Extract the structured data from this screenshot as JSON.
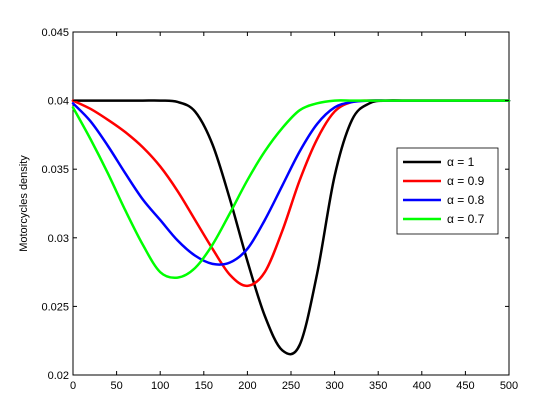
{
  "chart_data": {
    "type": "line",
    "title": "",
    "xlabel": "",
    "ylabel": "Motorcycles density",
    "xlim": [
      0,
      500
    ],
    "ylim": [
      0.02,
      0.045
    ],
    "xticks": [
      0,
      50,
      100,
      150,
      200,
      250,
      300,
      350,
      400,
      450,
      500
    ],
    "xtick_labels": [
      "0",
      "50",
      "100",
      "150",
      "200",
      "250",
      "300",
      "350",
      "400",
      "450",
      "500"
    ],
    "yticks": [
      0.02,
      0.025,
      0.03,
      0.035,
      0.04,
      0.045
    ],
    "ytick_labels": [
      "0.02",
      "0.025",
      "0.03",
      "0.035",
      "0.04",
      "0.045"
    ],
    "grid": false,
    "legend_position": "right",
    "x": [
      0,
      20,
      40,
      60,
      80,
      100,
      120,
      140,
      160,
      180,
      200,
      220,
      240,
      260,
      280,
      300,
      320,
      340,
      360,
      380,
      400,
      450,
      500
    ],
    "series": [
      {
        "name": "α = 1",
        "color": "#000000",
        "values": [
          0.04,
          0.04,
          0.04,
          0.04,
          0.04,
          0.04,
          0.0399,
          0.0392,
          0.0368,
          0.0328,
          0.0283,
          0.0243,
          0.0218,
          0.0222,
          0.0274,
          0.0345,
          0.0386,
          0.0398,
          0.04,
          0.04,
          0.04,
          0.04,
          0.04
        ]
      },
      {
        "name": "α = 0.9",
        "color": "#ff0000",
        "values": [
          0.04,
          0.0394,
          0.0386,
          0.0377,
          0.0366,
          0.0352,
          0.0334,
          0.0313,
          0.0292,
          0.0273,
          0.0265,
          0.0275,
          0.0305,
          0.0342,
          0.0372,
          0.0392,
          0.0399,
          0.04,
          0.04,
          0.04,
          0.04,
          0.04,
          0.04
        ]
      },
      {
        "name": "α = 0.8",
        "color": "#0000ff",
        "values": [
          0.0398,
          0.0385,
          0.0367,
          0.0347,
          0.0328,
          0.0313,
          0.0298,
          0.0287,
          0.0281,
          0.0282,
          0.0292,
          0.0313,
          0.0338,
          0.0363,
          0.0383,
          0.0395,
          0.0399,
          0.04,
          0.04,
          0.04,
          0.04,
          0.04,
          0.04
        ]
      },
      {
        "name": "α = 0.7",
        "color": "#00ff00",
        "values": [
          0.0395,
          0.0372,
          0.0347,
          0.032,
          0.0295,
          0.0275,
          0.0271,
          0.0278,
          0.0295,
          0.0318,
          0.0342,
          0.0363,
          0.038,
          0.0393,
          0.0398,
          0.04,
          0.04,
          0.04,
          0.04,
          0.04,
          0.04,
          0.04,
          0.04
        ]
      }
    ]
  }
}
